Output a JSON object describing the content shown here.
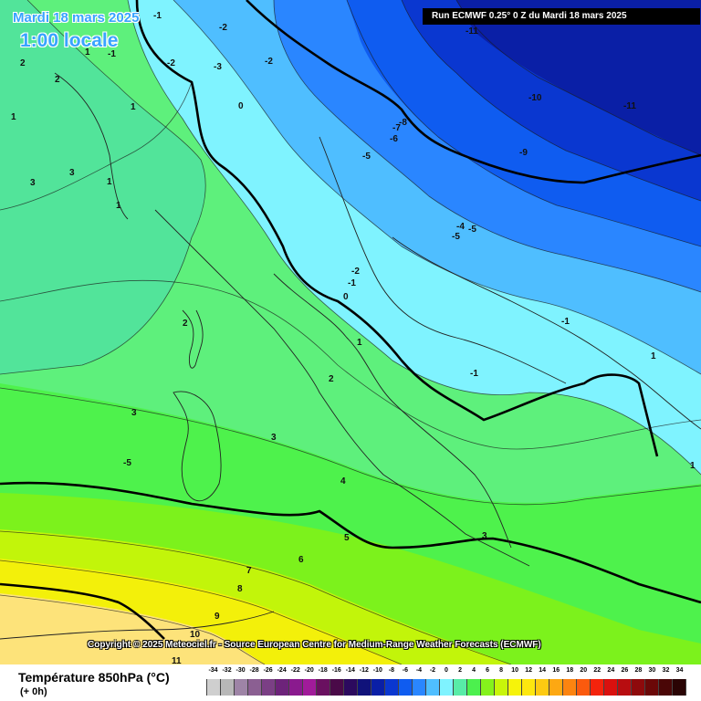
{
  "header": {
    "date": "Mardi 18 mars 2025",
    "time": "1:00 locale",
    "run": "Run ECMWF 0.25° 0 Z du Mardi 18 mars 2025"
  },
  "copyright": "Copyright © 2025 Meteociel.fr - Source European Centre for Medium-Range Weather Forecasts (ECMWF)",
  "legend": {
    "title": "Température 850hPa (°C)",
    "subtitle": "(+ 0h)",
    "scale": [
      {
        "v": "-34",
        "c": "#cfcfcf"
      },
      {
        "v": "-32",
        "c": "#b8b8b8"
      },
      {
        "v": "-30",
        "c": "#9e84a6"
      },
      {
        "v": "-28",
        "c": "#8b5f92"
      },
      {
        "v": "-26",
        "c": "#7b3f85"
      },
      {
        "v": "-24",
        "c": "#6d237a"
      },
      {
        "v": "-22",
        "c": "#8a1a8e"
      },
      {
        "v": "-20",
        "c": "#a11b9a"
      },
      {
        "v": "-18",
        "c": "#6a1060"
      },
      {
        "v": "-16",
        "c": "#4a0a48"
      },
      {
        "v": "-14",
        "c": "#2c0a5e"
      },
      {
        "v": "-12",
        "c": "#10127a"
      },
      {
        "v": "-10",
        "c": "#0a1fa6"
      },
      {
        "v": "-8",
        "c": "#0a37d0"
      },
      {
        "v": "-6",
        "c": "#0f5cf0"
      },
      {
        "v": "-4",
        "c": "#2a86ff"
      },
      {
        "v": "-2",
        "c": "#4fbeff"
      },
      {
        "v": "0",
        "c": "#7ff3ff"
      },
      {
        "v": "2",
        "c": "#58eca8"
      },
      {
        "v": "4",
        "c": "#4cf04e"
      },
      {
        "v": "6",
        "c": "#85f21c"
      },
      {
        "v": "8",
        "c": "#c8f50a"
      },
      {
        "v": "10",
        "c": "#f6f30a"
      },
      {
        "v": "12",
        "c": "#fde70f"
      },
      {
        "v": "14",
        "c": "#fdca12"
      },
      {
        "v": "16",
        "c": "#fda812"
      },
      {
        "v": "18",
        "c": "#fc8410"
      },
      {
        "v": "20",
        "c": "#fb5a0e"
      },
      {
        "v": "22",
        "c": "#f4230c"
      },
      {
        "v": "24",
        "c": "#d9100e"
      },
      {
        "v": "26",
        "c": "#b80d10"
      },
      {
        "v": "28",
        "c": "#8e0a0c"
      },
      {
        "v": "30",
        "c": "#6b0808"
      },
      {
        "v": "32",
        "c": "#4a0606"
      },
      {
        "v": "34",
        "c": "#2a0404"
      }
    ]
  },
  "isotherms": [
    "-2",
    "-1",
    "-1",
    "2",
    "2",
    "1",
    "1",
    "3",
    "1",
    "1",
    "3",
    "1",
    "-2",
    "-3",
    "-2",
    "0",
    "-5",
    "-8",
    "-6",
    "-7",
    "-11",
    "-10",
    "-11",
    "-9",
    "-5",
    "-4",
    "-5",
    "-2",
    "-1",
    "0",
    "2",
    "1",
    "-1",
    "-1",
    "2",
    "3",
    "-5",
    "3",
    "4",
    "5",
    "6",
    "3",
    "7",
    "8",
    "9",
    "10",
    "1",
    "1",
    "11"
  ]
}
